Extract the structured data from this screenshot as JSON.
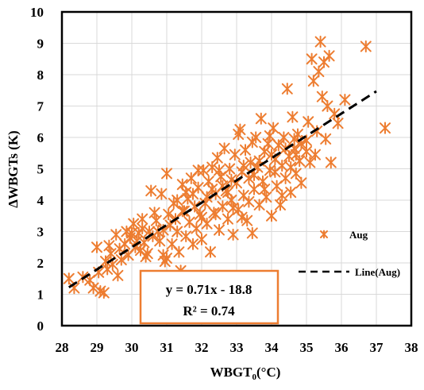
{
  "chart_data": {
    "type": "scatter",
    "xlabel_main": "WBGT",
    "xlabel_sub": "0",
    "xlabel_unit": "(°C)",
    "ylabel": "ΔWBGTs (K)",
    "xlim": [
      28,
      38
    ],
    "ylim": [
      0,
      10
    ],
    "x_ticks": [
      "28",
      "29",
      "30",
      "31",
      "32",
      "33",
      "34",
      "35",
      "36",
      "37",
      "38"
    ],
    "y_ticks": [
      "0",
      "1",
      "2",
      "3",
      "4",
      "5",
      "6",
      "7",
      "8",
      "9",
      "10"
    ],
    "grid": true,
    "legend_position": "right",
    "legend": {
      "series": "Aug",
      "line": "Line(Aug)"
    },
    "colors": {
      "points": "#ED7D31",
      "fit": "#000000",
      "grid": "#D9D9D9",
      "box_border": "#ED7D31"
    },
    "fit": {
      "slope": 0.71,
      "intercept": -18.8,
      "x_range": [
        28.2,
        37.0
      ],
      "equation": "y = 0.71x - 18.8",
      "r2_text": "R² = 0.74"
    },
    "series": [
      {
        "marker": "asterisk",
        "points": [
          [
            28.2,
            1.5
          ],
          [
            28.35,
            1.2
          ],
          [
            28.6,
            1.55
          ],
          [
            28.8,
            1.45
          ],
          [
            28.9,
            1.2
          ],
          [
            29.0,
            2.5
          ],
          [
            29.05,
            1.7
          ],
          [
            29.1,
            1.1
          ],
          [
            29.2,
            1.05
          ],
          [
            29.25,
            2.05
          ],
          [
            29.3,
            1.8
          ],
          [
            29.4,
            2.3
          ],
          [
            29.45,
            1.95
          ],
          [
            29.55,
            2.9
          ],
          [
            29.6,
            1.6
          ],
          [
            29.65,
            2.45
          ],
          [
            29.7,
            2.1
          ],
          [
            29.8,
            2.6
          ],
          [
            29.85,
            3.0
          ],
          [
            29.9,
            2.25
          ],
          [
            29.95,
            2.8
          ],
          [
            30.05,
            3.25
          ],
          [
            30.1,
            2.5
          ],
          [
            30.15,
            2.7
          ],
          [
            30.2,
            2.95
          ],
          [
            30.25,
            2.4
          ],
          [
            30.3,
            3.1
          ],
          [
            30.35,
            2.65
          ],
          [
            30.45,
            2.3
          ],
          [
            30.5,
            3.0
          ],
          [
            30.55,
            4.3
          ],
          [
            30.6,
            2.85
          ],
          [
            30.7,
            3.35
          ],
          [
            30.75,
            3.0
          ],
          [
            30.8,
            2.7
          ],
          [
            30.85,
            4.2
          ],
          [
            30.9,
            2.25
          ],
          [
            30.95,
            2.05
          ],
          [
            31.0,
            4.85
          ],
          [
            31.05,
            3.55
          ],
          [
            31.1,
            3.2
          ],
          [
            31.15,
            2.6
          ],
          [
            31.2,
            3.9
          ],
          [
            31.25,
            3.4
          ],
          [
            31.3,
            3.0
          ],
          [
            31.35,
            2.35
          ],
          [
            31.4,
            1.75
          ],
          [
            31.45,
            4.5
          ],
          [
            31.5,
            3.65
          ],
          [
            31.55,
            2.85
          ],
          [
            31.6,
            4.05
          ],
          [
            31.65,
            3.3
          ],
          [
            31.7,
            4.7
          ],
          [
            31.75,
            2.6
          ],
          [
            31.8,
            3.8
          ],
          [
            31.85,
            3.1
          ],
          [
            31.9,
            4.4
          ],
          [
            31.95,
            3.55
          ],
          [
            32.0,
            2.75
          ],
          [
            32.05,
            4.95
          ],
          [
            32.1,
            3.9
          ],
          [
            32.15,
            3.25
          ],
          [
            32.2,
            4.6
          ],
          [
            32.25,
            2.35
          ],
          [
            32.3,
            5.05
          ],
          [
            32.35,
            3.6
          ],
          [
            32.4,
            4.2
          ],
          [
            32.45,
            5.35
          ],
          [
            32.5,
            3.05
          ],
          [
            32.55,
            4.75
          ],
          [
            32.6,
            3.8
          ],
          [
            32.65,
            5.65
          ],
          [
            32.7,
            4.3
          ],
          [
            32.75,
            3.4
          ],
          [
            32.8,
            5.0
          ],
          [
            32.85,
            4.0
          ],
          [
            32.9,
            2.9
          ],
          [
            32.95,
            5.45
          ],
          [
            33.0,
            4.55
          ],
          [
            33.05,
            3.7
          ],
          [
            33.1,
            6.25
          ],
          [
            33.15,
            4.9
          ],
          [
            33.2,
            4.15
          ],
          [
            33.25,
            5.6
          ],
          [
            33.3,
            3.35
          ],
          [
            33.35,
            4.7
          ],
          [
            33.4,
            5.2
          ],
          [
            33.45,
            2.95
          ],
          [
            33.5,
            4.35
          ],
          [
            33.55,
            6.0
          ],
          [
            33.6,
            5.05
          ],
          [
            33.65,
            3.85
          ],
          [
            33.7,
            6.6
          ],
          [
            33.75,
            4.6
          ],
          [
            33.8,
            5.55
          ],
          [
            33.85,
            4.1
          ],
          [
            33.9,
            5.8
          ],
          [
            33.95,
            4.95
          ],
          [
            34.0,
            3.5
          ],
          [
            34.05,
            6.3
          ],
          [
            34.1,
            5.3
          ],
          [
            34.15,
            4.45
          ],
          [
            34.2,
            5.75
          ],
          [
            34.25,
            3.85
          ],
          [
            34.3,
            5.1
          ],
          [
            34.35,
            6.0
          ],
          [
            34.4,
            4.7
          ],
          [
            34.45,
            7.55
          ],
          [
            34.5,
            5.4
          ],
          [
            34.55,
            4.25
          ],
          [
            34.6,
            6.65
          ],
          [
            34.65,
            5.65
          ],
          [
            34.7,
            4.85
          ],
          [
            34.75,
            6.1
          ],
          [
            34.8,
            5.25
          ],
          [
            34.85,
            4.55
          ],
          [
            35.0,
            5.9
          ],
          [
            35.05,
            6.5
          ],
          [
            35.1,
            5.2
          ],
          [
            35.15,
            8.5
          ],
          [
            35.2,
            7.8
          ],
          [
            35.3,
            6.2
          ],
          [
            35.35,
            8.1
          ],
          [
            35.4,
            9.05
          ],
          [
            35.45,
            7.3
          ],
          [
            35.5,
            8.4
          ],
          [
            35.55,
            5.95
          ],
          [
            35.6,
            7.0
          ],
          [
            35.65,
            8.6
          ],
          [
            35.7,
            5.2
          ],
          [
            35.8,
            6.75
          ],
          [
            35.9,
            6.45
          ],
          [
            36.1,
            7.2
          ],
          [
            36.7,
            8.9
          ],
          [
            37.25,
            6.3
          ],
          [
            30.4,
            2.2
          ],
          [
            30.65,
            3.6
          ],
          [
            31.0,
            2.15
          ],
          [
            31.55,
            4.25
          ],
          [
            32.0,
            3.45
          ],
          [
            32.3,
            4.35
          ],
          [
            32.6,
            4.45
          ],
          [
            32.9,
            3.75
          ],
          [
            33.2,
            5.1
          ],
          [
            33.5,
            4.8
          ],
          [
            33.8,
            4.35
          ],
          [
            34.1,
            4.9
          ],
          [
            34.4,
            5.65
          ],
          [
            34.7,
            5.45
          ],
          [
            35.0,
            5.55
          ],
          [
            31.9,
            4.95
          ],
          [
            32.75,
            4.25
          ],
          [
            33.35,
            3.95
          ],
          [
            33.95,
            6.05
          ],
          [
            34.55,
            5.05
          ],
          [
            29.35,
            2.55
          ],
          [
            30.0,
            2.95
          ],
          [
            30.9,
            3.05
          ],
          [
            31.3,
            4.0
          ],
          [
            31.75,
            4.2
          ],
          [
            32.15,
            4.1
          ],
          [
            32.5,
            4.95
          ],
          [
            32.85,
            4.65
          ],
          [
            33.15,
            3.45
          ],
          [
            33.65,
            5.25
          ],
          [
            34.0,
            5.45
          ],
          [
            34.3,
            4.15
          ],
          [
            34.85,
            5.8
          ],
          [
            35.25,
            5.45
          ],
          [
            33.05,
            6.1
          ],
          [
            33.45,
            5.85
          ],
          [
            34.65,
            5.95
          ],
          [
            32.4,
            3.55
          ],
          [
            31.45,
            3.65
          ],
          [
            30.3,
            3.4
          ]
        ]
      }
    ]
  }
}
